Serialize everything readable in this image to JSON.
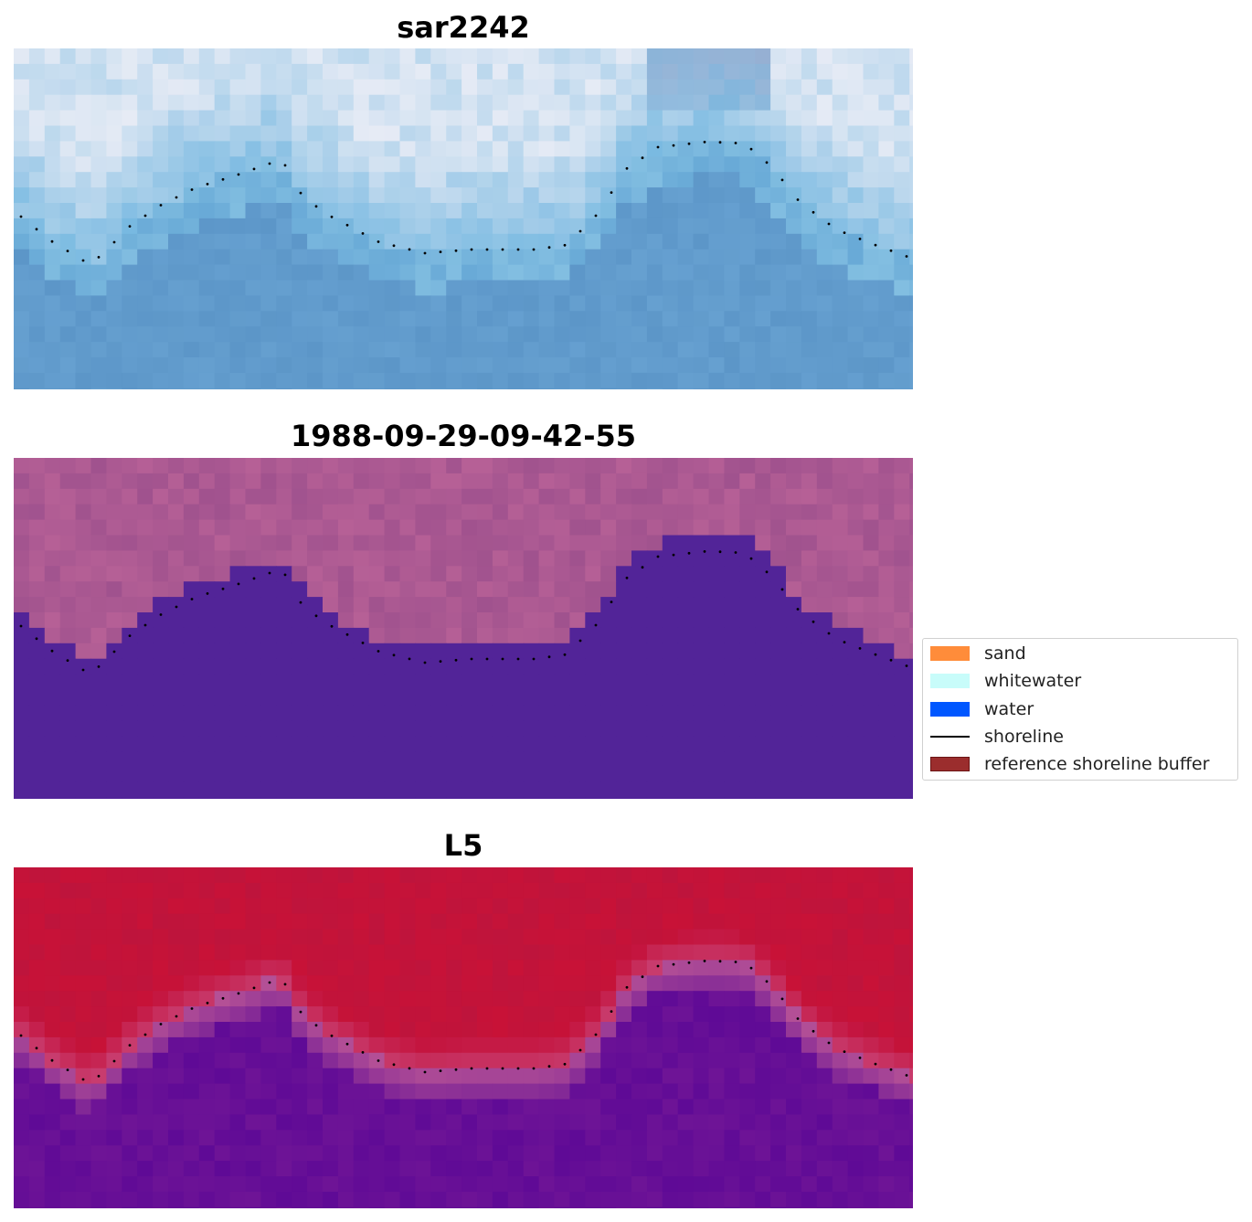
{
  "chart_data": [
    {
      "type": "heatmap",
      "title": "sar2242",
      "colormap": "blues",
      "grid": false,
      "series": [
        {
          "name": "shoreline",
          "type": "dotted-line"
        }
      ]
    },
    {
      "type": "heatmap",
      "title": "1988-09-29-09-42-55",
      "colormap": "pink-purple classification",
      "grid": false,
      "series": [
        {
          "name": "shoreline",
          "type": "dotted-line"
        }
      ]
    },
    {
      "type": "heatmap",
      "title": "L5",
      "colormap": "red-purple",
      "grid": false,
      "series": [
        {
          "name": "shoreline",
          "type": "dotted-line"
        }
      ]
    }
  ],
  "legend": {
    "placement": "center-right",
    "items": [
      {
        "label": "sand",
        "color": "#ff8c3a",
        "kind": "patch"
      },
      {
        "label": "whitewater",
        "color": "#c8fcfa",
        "kind": "patch"
      },
      {
        "label": "water",
        "color": "#0057ff",
        "kind": "patch"
      },
      {
        "label": "shoreline",
        "color": "#000000",
        "kind": "line"
      },
      {
        "label": "reference shoreline buffer",
        "color": "#9b2d2d",
        "kind": "patch"
      }
    ]
  }
}
